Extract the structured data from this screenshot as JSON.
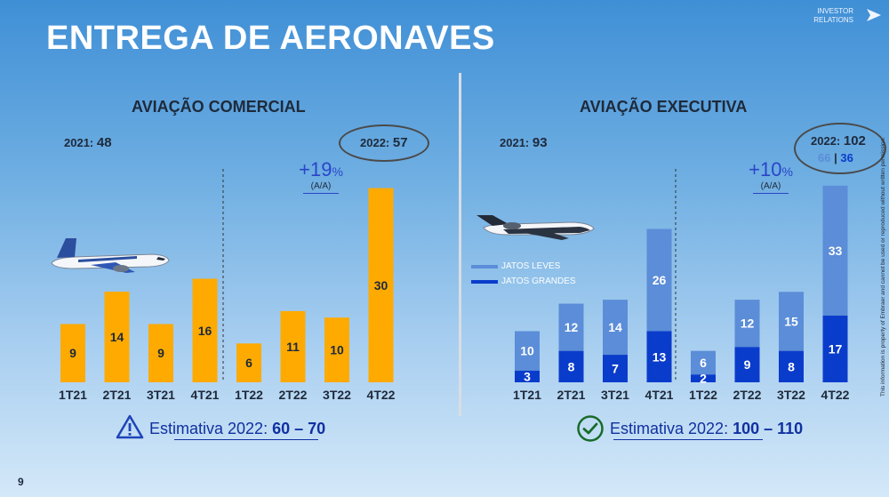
{
  "header": {
    "title": "ENTREGA DE AERONAVES",
    "investor_relations": [
      "INVESTOR",
      "RELATIONS"
    ]
  },
  "page_number": "9",
  "footnote": "This information is property of Embraer and cannot be used or reproduced without written permission.",
  "colors": {
    "commercial_bar": "#FFAA00",
    "light_jets": "#5B8DD8",
    "large_jets": "#0A3CCB"
  },
  "icons": [
    "commercial-jet-icon",
    "business-jet-icon",
    "warning-triangle-icon",
    "check-circle-icon",
    "arrow-right-icon"
  ],
  "commercial": {
    "section_title": "AVIAÇÃO COMERCIAL",
    "prev_year": {
      "label": "2021:",
      "value": "48"
    },
    "curr_year": {
      "label": "2022:",
      "value": "57"
    },
    "growth": {
      "value": "+19",
      "unit": "%",
      "sub": "(A/A)"
    },
    "estimate": {
      "label": "Estimativa 2022:",
      "range": "60 – 70"
    }
  },
  "executive": {
    "section_title": "AVIAÇÃO EXECUTIVA",
    "prev_year": {
      "label": "2021:",
      "value": "93"
    },
    "curr_year": {
      "label": "2022:",
      "value": "102",
      "split_light": "66",
      "split_sep": "|",
      "split_large": "36"
    },
    "growth": {
      "value": "+10",
      "unit": "%",
      "sub": "(A/A)"
    },
    "legend": {
      "light": "JATOS LEVES",
      "large": "JATOS GRANDES"
    },
    "estimate": {
      "label": "Estimativa 2022:",
      "range": "100 – 110"
    }
  },
  "chart_data": [
    {
      "type": "bar",
      "title": "AVIAÇÃO COMERCIAL",
      "categories": [
        "1T21",
        "2T21",
        "3T21",
        "4T21",
        "1T22",
        "2T22",
        "3T22",
        "4T22"
      ],
      "values": [
        9,
        14,
        9,
        16,
        6,
        11,
        10,
        30
      ],
      "ylim": [
        0,
        32
      ],
      "grid": false
    },
    {
      "type": "bar",
      "stacked": true,
      "title": "AVIAÇÃO EXECUTIVA",
      "categories": [
        "1T21",
        "2T21",
        "3T21",
        "4T21",
        "1T22",
        "2T22",
        "3T22",
        "4T22"
      ],
      "series": [
        {
          "name": "JATOS GRANDES",
          "values": [
            3,
            8,
            7,
            13,
            2,
            9,
            8,
            17
          ]
        },
        {
          "name": "JATOS LEVES",
          "values": [
            10,
            12,
            14,
            26,
            6,
            12,
            15,
            33
          ]
        }
      ],
      "ylim": [
        0,
        52
      ],
      "legend": "left",
      "grid": false
    }
  ]
}
